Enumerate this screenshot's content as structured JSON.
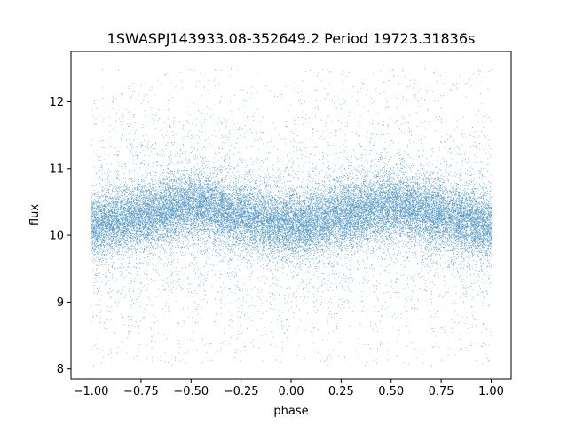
{
  "chart_data": {
    "type": "scatter",
    "title": "1SWASPJ143933.08-352649.2 Period 19723.31836s",
    "xlabel": "phase",
    "ylabel": "flux",
    "xlim": [
      -1.1,
      1.1
    ],
    "ylim": [
      7.85,
      12.75
    ],
    "x_ticks": [
      -1.0,
      -0.75,
      -0.5,
      -0.25,
      0.0,
      0.25,
      0.5,
      0.75,
      1.0
    ],
    "x_tick_labels": [
      "−1.00",
      "−0.75",
      "−0.50",
      "−0.25",
      "0.00",
      "0.25",
      "0.50",
      "0.75",
      "1.00"
    ],
    "y_ticks": [
      8,
      9,
      10,
      11,
      12
    ],
    "y_tick_labels": [
      "8",
      "9",
      "10",
      "11",
      "12"
    ],
    "grid": false,
    "legend": false,
    "marker_color": "#1f77b4",
    "series": [
      {
        "phase_range": [
          -1.0,
          1.0
        ],
        "trend_phase": [
          -1.0,
          -0.75,
          -0.5,
          -0.25,
          0.0,
          0.25,
          0.5,
          0.75,
          1.0
        ],
        "trend_flux": [
          10.15,
          10.3,
          10.45,
          10.3,
          10.15,
          10.3,
          10.45,
          10.3,
          10.15
        ],
        "core_spread": 0.25,
        "outlier_flux_range": [
          8.05,
          12.5
        ],
        "approx_points": 30000
      }
    ]
  }
}
